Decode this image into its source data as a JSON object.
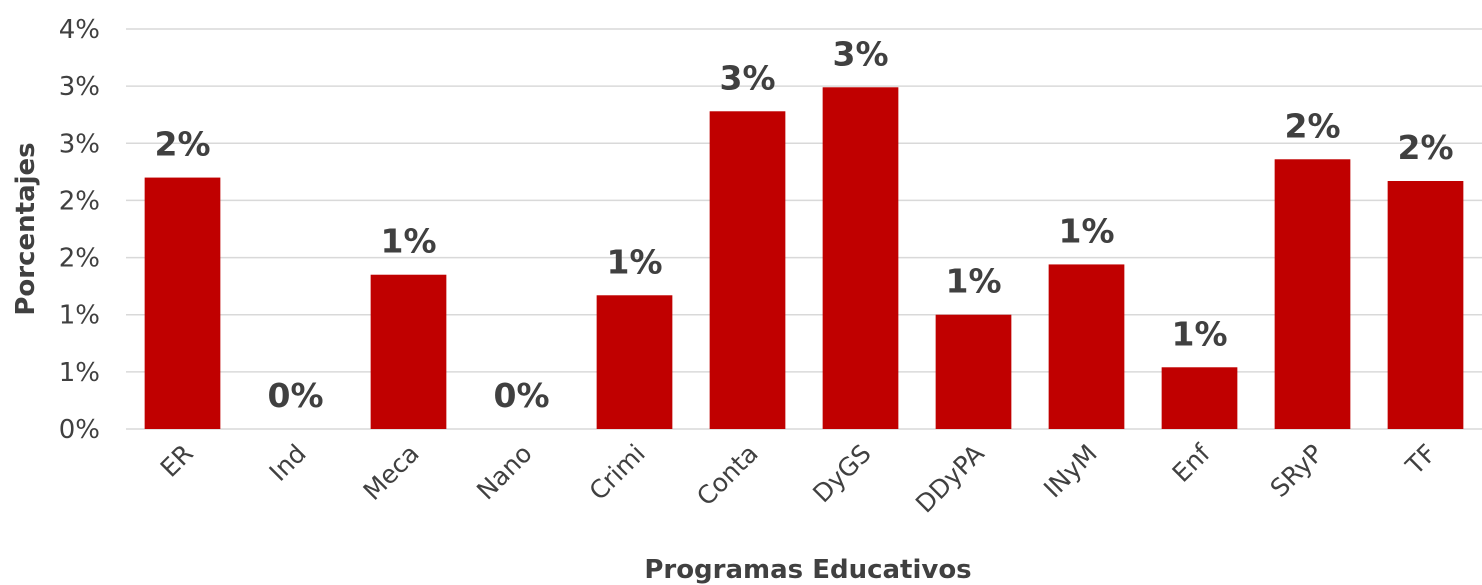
{
  "chart_data": {
    "type": "bar",
    "title": "",
    "xlabel": "Programas Educativos",
    "ylabel": "Porcentajes",
    "categories": [
      "ER",
      "Ind",
      "Meca",
      "Nano",
      "Crimi",
      "Conta",
      "DyGS",
      "DDyPA",
      "INyM",
      "Enf",
      "SRyP",
      "TF"
    ],
    "values": [
      2.2,
      0.0,
      1.35,
      0.0,
      1.17,
      2.78,
      2.99,
      1.0,
      1.44,
      0.54,
      2.36,
      2.17
    ],
    "data_labels": [
      "2%",
      "0%",
      "1%",
      "0%",
      "1%",
      "3%",
      "3%",
      "1%",
      "1%",
      "1%",
      "2%",
      "2%"
    ],
    "ylim": [
      0,
      3.5
    ],
    "yticks": [
      0,
      0.5,
      1,
      1.5,
      2,
      2.5,
      3,
      3.5
    ],
    "ytick_labels": [
      "0%",
      "1%",
      "1%",
      "2%",
      "2%",
      "3%",
      "3%",
      "4%"
    ],
    "grid": true,
    "legend": "none",
    "bar_color": "#c00000"
  }
}
